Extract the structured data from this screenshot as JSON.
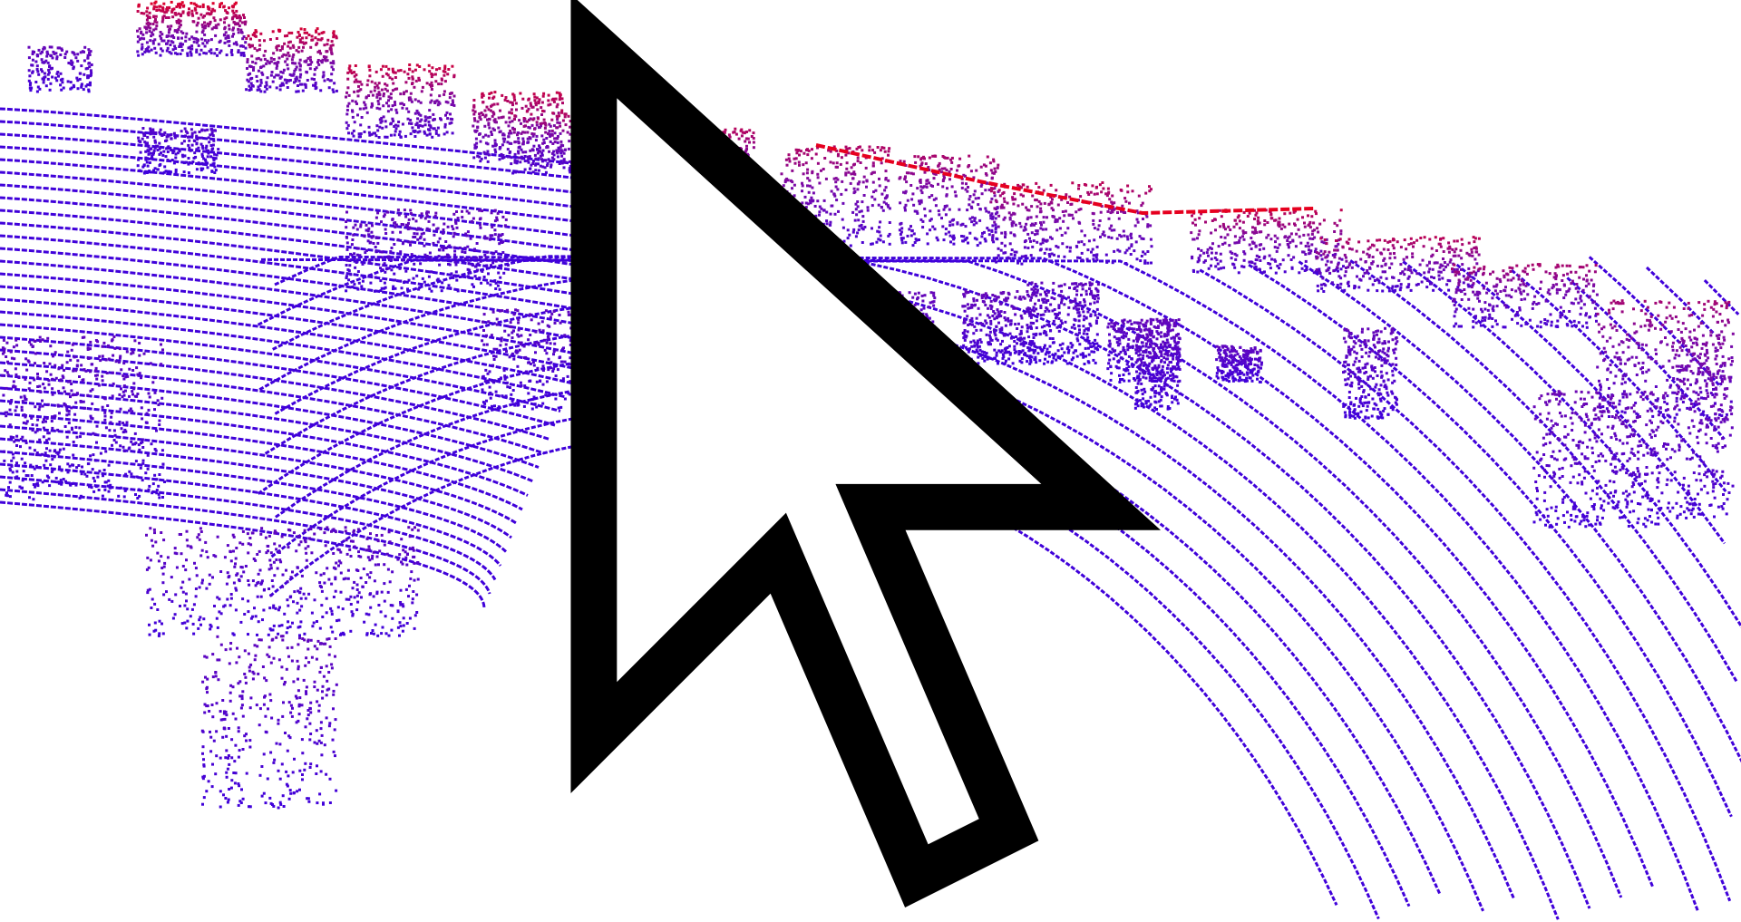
{
  "viewer": {
    "background_color": "#ffffff",
    "colormap": {
      "low_color": "#3a00e0",
      "mid_color": "#7a0aa8",
      "high_color": "#e6001f",
      "encodes": "height"
    },
    "cursor_icon": "arrow-pointer-icon"
  }
}
